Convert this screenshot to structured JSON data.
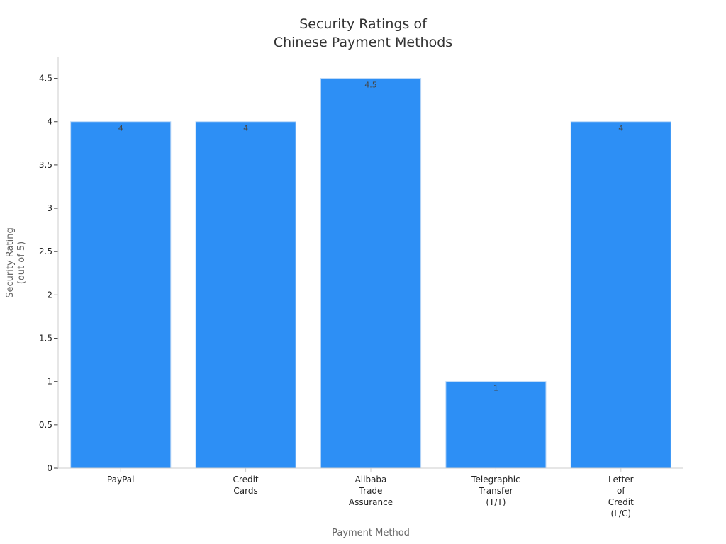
{
  "chart_data": {
    "type": "bar",
    "title": [
      "Security Ratings of",
      "Chinese Payment Methods"
    ],
    "categories": [
      [
        "PayPal"
      ],
      [
        "Credit",
        "Cards"
      ],
      [
        "Alibaba",
        "Trade",
        "Assurance"
      ],
      [
        "Telegraphic",
        "Transfer",
        "(T/T)"
      ],
      [
        "Letter",
        "of",
        "Credit",
        "(L/C)"
      ]
    ],
    "values": [
      4,
      4,
      4.5,
      1,
      4
    ],
    "data_labels": [
      "4",
      "4",
      "4.5",
      "1",
      "4"
    ],
    "xlabel": "Payment Method",
    "ylabel": [
      "Security Rating",
      "(out of 5)"
    ],
    "ylim": [
      0,
      4.75
    ],
    "yticks": [
      0,
      0.5,
      1,
      1.5,
      2,
      2.5,
      3,
      3.5,
      4,
      4.5
    ],
    "ytick_labels": [
      "0",
      "0.5",
      "1",
      "1.5",
      "2",
      "2.5",
      "3",
      "3.5",
      "4",
      "4.5"
    ],
    "bar_color": "#2d8ff5",
    "bar_edge_color": "#b8d6f7",
    "axis_color": "#cccccc",
    "legend": "none",
    "grid": false
  }
}
